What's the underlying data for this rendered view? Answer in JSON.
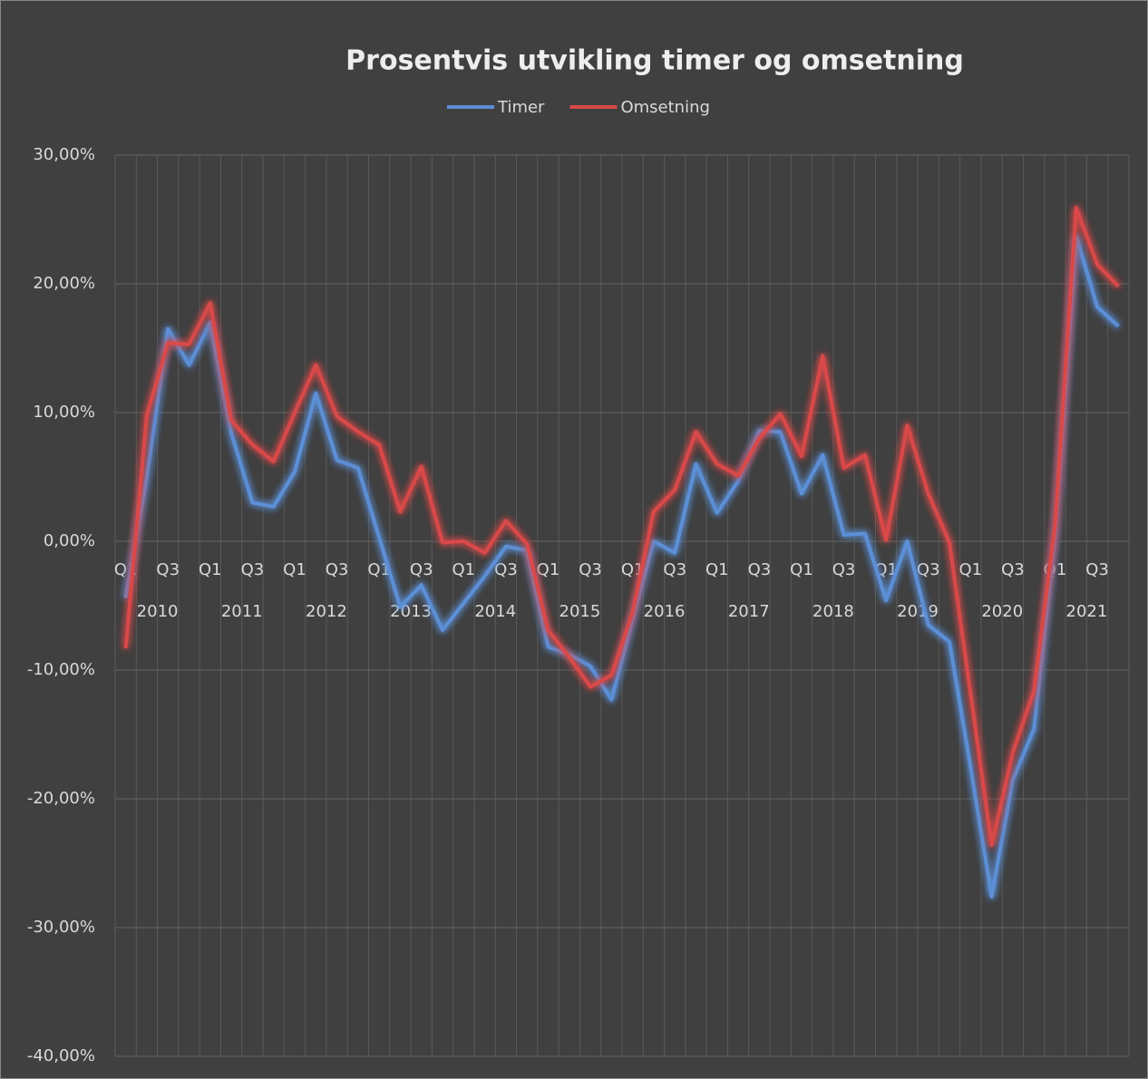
{
  "chart_data": {
    "type": "line",
    "title": "Prosentvis utvikling timer og omsetning",
    "categories": [
      "Q1",
      null,
      "Q3",
      null,
      "Q1",
      null,
      "Q3",
      null,
      "Q1",
      null,
      "Q3",
      null,
      "Q1",
      null,
      "Q3",
      null,
      "Q1",
      null,
      "Q3",
      null,
      "Q1",
      null,
      "Q3",
      null,
      "Q1",
      null,
      "Q3",
      null,
      "Q1",
      null,
      "Q3",
      null,
      "Q1",
      null,
      "Q3",
      null,
      "Q1",
      null,
      "Q3",
      null,
      "Q1",
      null,
      "Q3",
      null,
      "Q1",
      null,
      "Q3",
      null
    ],
    "category_groups": [
      "2010",
      "2011",
      "2012",
      "2013",
      "2014",
      "2015",
      "2016",
      "2017",
      "2018",
      "2019",
      "2020",
      "2021"
    ],
    "series": [
      {
        "name": "Timer",
        "color": "#5b8fd6",
        "values": [
          -4.4,
          5.0,
          16.5,
          13.7,
          17.0,
          8.4,
          3.0,
          2.7,
          5.4,
          11.5,
          6.3,
          5.7,
          0.3,
          -5.1,
          -3.4,
          -6.9,
          -4.8,
          -2.7,
          -0.4,
          -0.7,
          -8.2,
          -8.8,
          -9.7,
          -12.3,
          -6.0,
          0.0,
          -0.9,
          6.0,
          2.2,
          4.7,
          8.6,
          8.5,
          3.7,
          6.7,
          0.5,
          0.6,
          -4.6,
          0.0,
          -6.5,
          -7.8,
          -17.5,
          -27.6,
          -18.5,
          -14.6,
          0.5,
          23.7,
          18.2,
          16.7
        ]
      },
      {
        "name": "Omsetning",
        "color": "#d94848",
        "values": [
          -8.3,
          9.8,
          15.4,
          15.3,
          18.5,
          9.4,
          7.5,
          6.2,
          10.0,
          13.7,
          9.7,
          8.5,
          7.5,
          2.3,
          5.8,
          -0.1,
          0.0,
          -0.9,
          1.6,
          -0.2,
          -6.9,
          -9.0,
          -11.3,
          -10.4,
          -5.5,
          2.3,
          4.0,
          8.5,
          6.0,
          5.1,
          8.0,
          9.9,
          6.6,
          14.4,
          5.7,
          6.7,
          0.1,
          9.0,
          3.7,
          -0.1,
          -11.8,
          -23.6,
          -16.4,
          -11.6,
          1.2,
          25.9,
          21.5,
          19.8
        ]
      }
    ],
    "ylim": [
      -40,
      30
    ],
    "yticks": [
      {
        "value": -40,
        "label": "-40,00%"
      },
      {
        "value": -30,
        "label": "-30,00%"
      },
      {
        "value": -20,
        "label": "-20,00%"
      },
      {
        "value": -10,
        "label": "-10,00%"
      },
      {
        "value": 0,
        "label": "0,00%"
      },
      {
        "value": 10,
        "label": "10,00%"
      },
      {
        "value": 20,
        "label": "20,00%"
      },
      {
        "value": 30,
        "label": "30,00%"
      }
    ],
    "grid": true,
    "legend": "top"
  }
}
